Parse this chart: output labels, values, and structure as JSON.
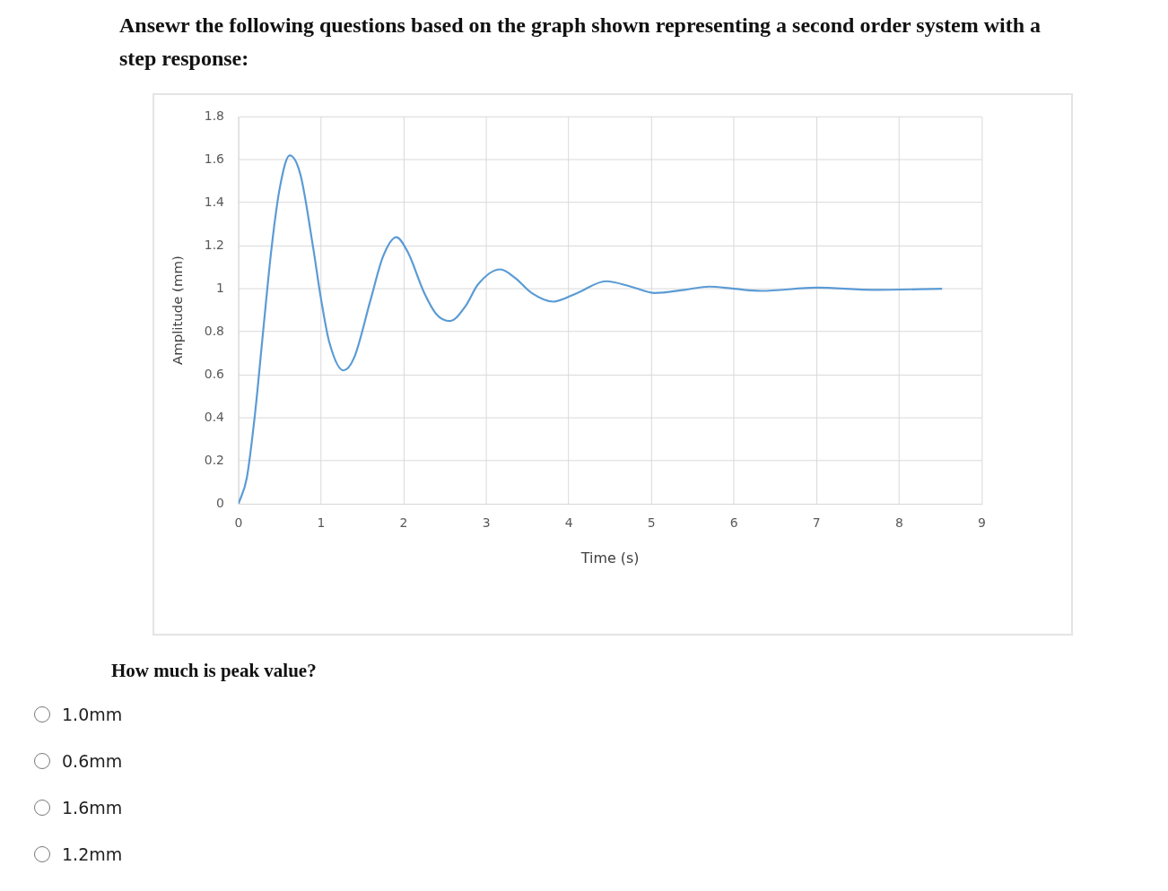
{
  "chart_data": {
    "type": "line",
    "title": "Ansewr the following questions based on the graph shown representing a second order system with a step response:",
    "xlabel": "Time (s)",
    "ylabel": "Amplitude (mm)",
    "x": [
      0,
      0.1,
      0.2,
      0.3,
      0.4,
      0.5,
      0.62,
      0.75,
      0.9,
      1.0,
      1.1,
      1.27,
      1.4,
      1.6,
      1.75,
      1.91,
      2.05,
      2.25,
      2.4,
      2.56,
      2.75,
      2.9,
      3.17,
      3.35,
      3.55,
      3.81,
      4.1,
      4.45,
      4.75,
      5.04,
      5.4,
      5.7,
      6.0,
      6.33,
      7.0,
      7.7,
      8.52
    ],
    "series": [
      {
        "color": "#5b9bd5",
        "values": [
          0,
          0.12,
          0.42,
          0.81,
          1.19,
          1.47,
          1.62,
          1.53,
          1.2,
          0.95,
          0.75,
          0.62,
          0.68,
          0.95,
          1.15,
          1.24,
          1.17,
          0.98,
          0.88,
          0.85,
          0.92,
          1.02,
          1.09,
          1.05,
          0.98,
          0.94,
          0.98,
          1.035,
          1.01,
          0.98,
          0.995,
          1.01,
          1.0,
          0.99,
          1.005,
          0.995,
          1.0
        ]
      }
    ],
    "xlim": [
      0,
      9
    ],
    "xticks": [
      0,
      1,
      2,
      3,
      4,
      5,
      6,
      7,
      8,
      9
    ],
    "ylim": [
      0,
      1.8
    ],
    "yticks": [
      0,
      0.2,
      0.4,
      0.6,
      0.8,
      1,
      1.2,
      1.4,
      1.6,
      1.8
    ],
    "grid": true,
    "legend": false,
    "marker": "none",
    "line_style": "solid",
    "annotations": [
      "How much is peak value?",
      "1.0mm",
      "0.6mm",
      "1.6mm",
      "1.2mm"
    ]
  }
}
